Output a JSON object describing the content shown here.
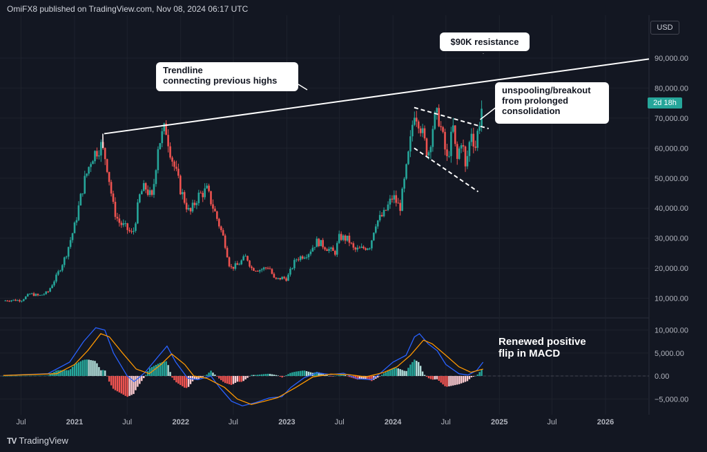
{
  "header": {
    "published_text": "OmiFX8 published on TradingView.com, Nov 08, 2024 06:17 UTC"
  },
  "currency": "USD",
  "price_badge": "2d 18h",
  "annotations": {
    "resistance": "$90K resistance",
    "trendline_line1": "Trendline",
    "trendline_line2": "connecting previous highs",
    "breakout_line1": "unspooling/breakout",
    "breakout_line2": "from prolonged",
    "breakout_line3": "consolidation",
    "macd_line1": "Renewed positive",
    "macd_line2": "flip in MACD"
  },
  "logo": {
    "mark": "TV",
    "text": "TradingView"
  },
  "colors": {
    "background": "#131722",
    "up": "#26a69a",
    "down": "#ef5350",
    "macd": "#2962ff",
    "signal": "#ff9800",
    "badge": "#26a69a"
  },
  "chart_data": [
    {
      "type": "candlestick",
      "panel": "price",
      "x_tick_labels": [
        "Jul",
        "2021",
        "Jul",
        "2022",
        "Jul",
        "2023",
        "Jul",
        "2024",
        "Jul",
        "2025",
        "Jul",
        "2026"
      ],
      "x_tick_dates": [
        "2020-07-01",
        "2021-01-01",
        "2021-07-01",
        "2022-01-01",
        "2022-07-01",
        "2023-01-01",
        "2023-07-01",
        "2024-01-01",
        "2024-07-01",
        "2025-01-01",
        "2025-07-01",
        "2026-01-01"
      ],
      "y_tick_labels": [
        "90,000.00",
        "80,000.00",
        "70,000.00",
        "60,000.00",
        "50,000.00",
        "40,000.00",
        "30,000.00",
        "20,000.00",
        "10,000.00"
      ],
      "ylim": [
        0,
        100000
      ],
      "close_series": [
        [
          "2020-05-01",
          9200
        ],
        [
          "2020-06-01",
          9400
        ],
        [
          "2020-07-01",
          9300
        ],
        [
          "2020-08-01",
          11500
        ],
        [
          "2020-09-01",
          10800
        ],
        [
          "2020-10-01",
          12000
        ],
        [
          "2020-11-01",
          17500
        ],
        [
          "2020-12-01",
          24000
        ],
        [
          "2021-01-01",
          34000
        ],
        [
          "2021-02-01",
          48000
        ],
        [
          "2021-03-01",
          57000
        ],
        [
          "2021-04-01",
          61000
        ],
        [
          "2021-04-20",
          56000
        ],
        [
          "2021-05-15",
          40000
        ],
        [
          "2021-06-01",
          35500
        ],
        [
          "2021-07-01",
          33000
        ],
        [
          "2021-07-20",
          31000
        ],
        [
          "2021-08-15",
          45000
        ],
        [
          "2021-09-01",
          47000
        ],
        [
          "2021-09-25",
          43000
        ],
        [
          "2021-10-15",
          61000
        ],
        [
          "2021-11-10",
          67000
        ],
        [
          "2021-12-01",
          57000
        ],
        [
          "2022-01-01",
          46000
        ],
        [
          "2022-02-01",
          38000
        ],
        [
          "2022-03-01",
          44000
        ],
        [
          "2022-04-01",
          46000
        ],
        [
          "2022-05-01",
          38000
        ],
        [
          "2022-06-01",
          29000
        ],
        [
          "2022-06-20",
          20000
        ],
        [
          "2022-07-15",
          21000
        ],
        [
          "2022-08-15",
          24000
        ],
        [
          "2022-09-01",
          20000
        ],
        [
          "2022-10-01",
          19500
        ],
        [
          "2022-11-01",
          20500
        ],
        [
          "2022-11-20",
          16000
        ],
        [
          "2022-12-15",
          16800
        ],
        [
          "2023-01-01",
          16500
        ],
        [
          "2023-02-01",
          23000
        ],
        [
          "2023-03-15",
          25000
        ],
        [
          "2023-04-15",
          29000
        ],
        [
          "2023-05-15",
          27000
        ],
        [
          "2023-06-15",
          25000
        ],
        [
          "2023-07-01",
          30500
        ],
        [
          "2023-08-01",
          29500
        ],
        [
          "2023-08-20",
          26000
        ],
        [
          "2023-09-15",
          26500
        ],
        [
          "2023-10-15",
          27500
        ],
        [
          "2023-11-01",
          35000
        ],
        [
          "2023-12-01",
          38000
        ],
        [
          "2024-01-01",
          44000
        ],
        [
          "2024-01-25",
          40000
        ],
        [
          "2024-02-15",
          52000
        ],
        [
          "2024-03-01",
          62000
        ],
        [
          "2024-03-14",
          73000
        ],
        [
          "2024-04-01",
          69000
        ],
        [
          "2024-04-15",
          63000
        ],
        [
          "2024-05-01",
          58000
        ],
        [
          "2024-05-20",
          69000
        ],
        [
          "2024-06-05",
          71000
        ],
        [
          "2024-06-25",
          61000
        ],
        [
          "2024-07-05",
          56000
        ],
        [
          "2024-07-29",
          68000
        ],
        [
          "2024-08-05",
          54000
        ],
        [
          "2024-08-25",
          64000
        ],
        [
          "2024-09-06",
          53000
        ],
        [
          "2024-09-27",
          66000
        ],
        [
          "2024-10-10",
          60000
        ],
        [
          "2024-10-29",
          72000
        ],
        [
          "2024-11-06",
          75500
        ]
      ],
      "last_price_badge": "2d 18h"
    },
    {
      "type": "macd",
      "panel": "indicator",
      "y_tick_labels": [
        "10,000.00",
        "5,000.00",
        "0.00",
        "−5,000.00"
      ],
      "ylim": [
        -7000,
        12000
      ],
      "series": [
        {
          "name": "MACD",
          "points": [
            [
              "2020-05-01",
              100
            ],
            [
              "2020-10-01",
              500
            ],
            [
              "2020-12-15",
              3000
            ],
            [
              "2021-02-01",
              7500
            ],
            [
              "2021-03-15",
              10500
            ],
            [
              "2021-04-15",
              10000
            ],
            [
              "2021-05-15",
              5000
            ],
            [
              "2021-07-01",
              0
            ],
            [
              "2021-07-25",
              -1200
            ],
            [
              "2021-09-01",
              800
            ],
            [
              "2021-10-15",
              4200
            ],
            [
              "2021-11-15",
              6500
            ],
            [
              "2021-12-15",
              3000
            ],
            [
              "2022-01-25",
              -500
            ],
            [
              "2022-03-01",
              -800
            ],
            [
              "2022-04-15",
              0
            ],
            [
              "2022-05-15",
              -2500
            ],
            [
              "2022-06-25",
              -5500
            ],
            [
              "2022-08-01",
              -6500
            ],
            [
              "2022-09-15",
              -5800
            ],
            [
              "2022-11-01",
              -4800
            ],
            [
              "2022-12-15",
              -4500
            ],
            [
              "2023-01-15",
              -2500
            ],
            [
              "2023-03-01",
              -400
            ],
            [
              "2023-04-15",
              700
            ],
            [
              "2023-06-01",
              300
            ],
            [
              "2023-07-15",
              600
            ],
            [
              "2023-09-01",
              -600
            ],
            [
              "2023-10-20",
              -800
            ],
            [
              "2023-11-15",
              400
            ],
            [
              "2024-01-01",
              3000
            ],
            [
              "2024-02-15",
              4500
            ],
            [
              "2024-03-15",
              8500
            ],
            [
              "2024-04-01",
              9200
            ],
            [
              "2024-05-01",
              7000
            ],
            [
              "2024-06-01",
              5500
            ],
            [
              "2024-07-01",
              2500
            ],
            [
              "2024-08-15",
              500
            ],
            [
              "2024-09-15",
              200
            ],
            [
              "2024-10-15",
              1200
            ],
            [
              "2024-11-06",
              3000
            ]
          ]
        },
        {
          "name": "Signal",
          "points": [
            [
              "2020-05-01",
              100
            ],
            [
              "2020-11-01",
              500
            ],
            [
              "2021-01-01",
              2500
            ],
            [
              "2021-02-15",
              5500
            ],
            [
              "2021-04-01",
              9200
            ],
            [
              "2021-05-01",
              8500
            ],
            [
              "2021-06-15",
              5000
            ],
            [
              "2021-08-01",
              1500
            ],
            [
              "2021-09-15",
              500
            ],
            [
              "2021-10-25",
              2500
            ],
            [
              "2021-12-01",
              4800
            ],
            [
              "2022-01-15",
              2500
            ],
            [
              "2022-02-15",
              0
            ],
            [
              "2022-04-01",
              -500
            ],
            [
              "2022-06-01",
              -2500
            ],
            [
              "2022-07-15",
              -5000
            ],
            [
              "2022-09-01",
              -6200
            ],
            [
              "2022-10-15",
              -5500
            ],
            [
              "2022-12-01",
              -4700
            ],
            [
              "2023-02-01",
              -2500
            ],
            [
              "2023-04-01",
              -200
            ],
            [
              "2023-06-01",
              400
            ],
            [
              "2023-08-01",
              300
            ],
            [
              "2023-10-01",
              -200
            ],
            [
              "2023-12-01",
              800
            ],
            [
              "2024-01-15",
              2000
            ],
            [
              "2024-03-01",
              4500
            ],
            [
              "2024-04-15",
              7800
            ],
            [
              "2024-05-15",
              7000
            ],
            [
              "2024-07-01",
              4500
            ],
            [
              "2024-08-15",
              2000
            ],
            [
              "2024-09-25",
              800
            ],
            [
              "2024-11-06",
              1500
            ]
          ]
        }
      ],
      "histogram": "MACD minus Signal"
    }
  ]
}
